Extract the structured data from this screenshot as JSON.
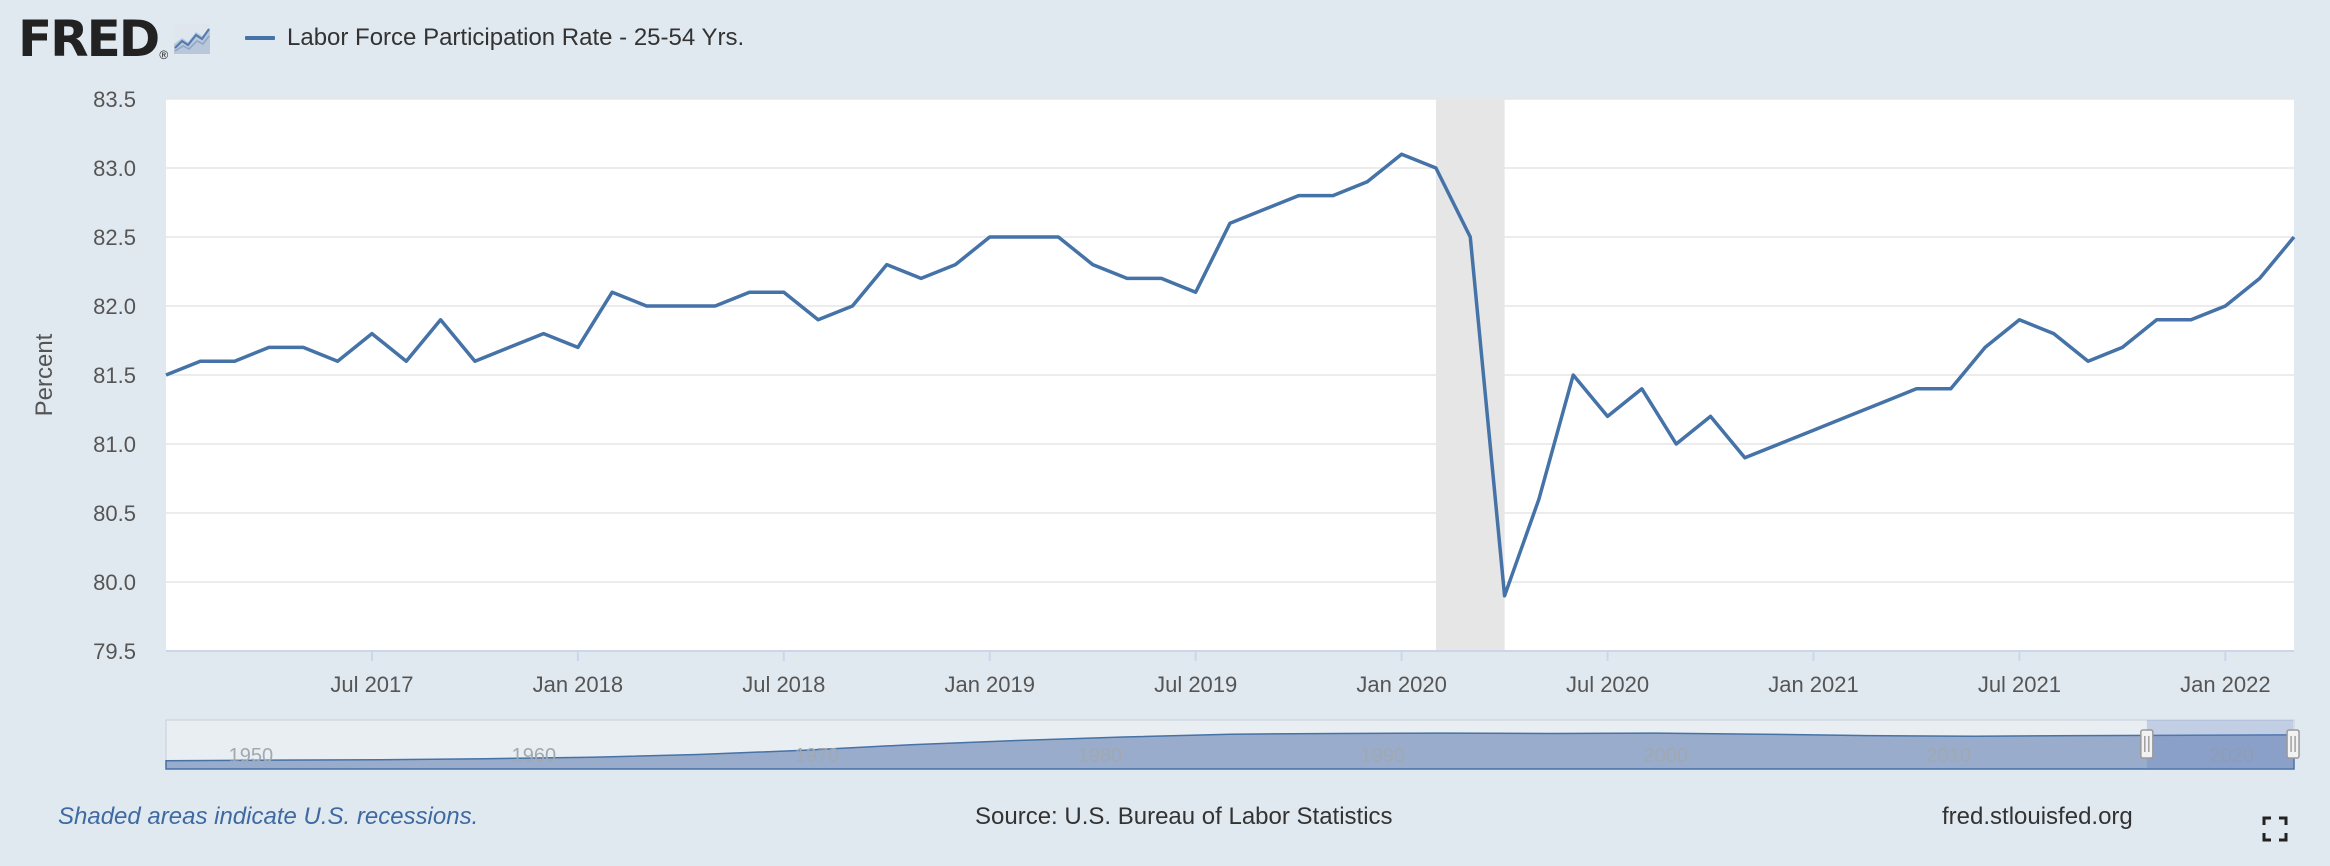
{
  "header": {
    "logo_text": "FRED",
    "logo_reg": "®",
    "series_label": "Labor Force Participation Rate - 25-54 Yrs."
  },
  "footer": {
    "recession_note": "Shaded areas indicate U.S. recessions.",
    "source": "Source: U.S. Bureau of Labor Statistics",
    "url": "fred.stlouisfed.org"
  },
  "colors": {
    "line": "#4572a7",
    "recession": "#e6e6e6",
    "background": "#e1e9f0",
    "navigator_fill": "#9aaccb"
  },
  "icons": {
    "logo_graph": "line-graph-icon",
    "fullscreen": "fullscreen-icon"
  },
  "chart_data": {
    "type": "line",
    "title": "",
    "xlabel": "",
    "ylabel": "Percent",
    "ylim": [
      79.5,
      83.5
    ],
    "yticks": [
      "79.5",
      "80.0",
      "80.5",
      "81.0",
      "81.5",
      "82.0",
      "82.5",
      "83.0",
      "83.5"
    ],
    "xticks": [
      "Jul 2017",
      "Jan 2018",
      "Jul 2018",
      "Jan 2019",
      "Jul 2019",
      "Jan 2020",
      "Jul 2020",
      "Jan 2021",
      "Jul 2021",
      "Jan 2022"
    ],
    "grid": true,
    "recession": [
      "2020-02",
      "2020-04"
    ],
    "series": [
      {
        "name": "Labor Force Participation Rate - 25-54 Yrs.",
        "x": [
          "2017-01",
          "2017-02",
          "2017-03",
          "2017-04",
          "2017-05",
          "2017-06",
          "2017-07",
          "2017-08",
          "2017-09",
          "2017-10",
          "2017-11",
          "2017-12",
          "2018-01",
          "2018-02",
          "2018-03",
          "2018-04",
          "2018-05",
          "2018-06",
          "2018-07",
          "2018-08",
          "2018-09",
          "2018-10",
          "2018-11",
          "2018-12",
          "2019-01",
          "2019-02",
          "2019-03",
          "2019-04",
          "2019-05",
          "2019-06",
          "2019-07",
          "2019-08",
          "2019-09",
          "2019-10",
          "2019-11",
          "2019-12",
          "2020-01",
          "2020-02",
          "2020-03",
          "2020-04",
          "2020-05",
          "2020-06",
          "2020-07",
          "2020-08",
          "2020-09",
          "2020-10",
          "2020-11",
          "2020-12",
          "2021-01",
          "2021-02",
          "2021-03",
          "2021-04",
          "2021-05",
          "2021-06",
          "2021-07",
          "2021-08",
          "2021-09",
          "2021-10",
          "2021-11",
          "2021-12",
          "2022-01",
          "2022-02",
          "2022-03"
        ],
        "values": [
          81.5,
          81.6,
          81.6,
          81.7,
          81.7,
          81.6,
          81.8,
          81.6,
          81.9,
          81.6,
          81.7,
          81.8,
          81.7,
          82.1,
          82.0,
          82.0,
          82.0,
          82.1,
          82.1,
          81.9,
          82.0,
          82.3,
          82.2,
          82.3,
          82.5,
          82.5,
          82.5,
          82.3,
          82.2,
          82.2,
          82.1,
          82.6,
          82.7,
          82.8,
          82.8,
          82.9,
          83.1,
          83.0,
          82.5,
          79.9,
          80.6,
          81.5,
          81.2,
          81.4,
          81.0,
          81.2,
          80.9,
          81.0,
          81.1,
          81.2,
          81.3,
          81.4,
          81.4,
          81.7,
          81.9,
          81.8,
          81.6,
          81.7,
          81.9,
          81.9,
          82.0,
          82.2,
          82.5
        ]
      }
    ],
    "navigator": {
      "labels": [
        "1950",
        "1960",
        "1970",
        "1980",
        "1990",
        "2000",
        "2010",
        "2020"
      ],
      "selected_range": [
        "2017-01",
        "2022-03"
      ]
    }
  }
}
